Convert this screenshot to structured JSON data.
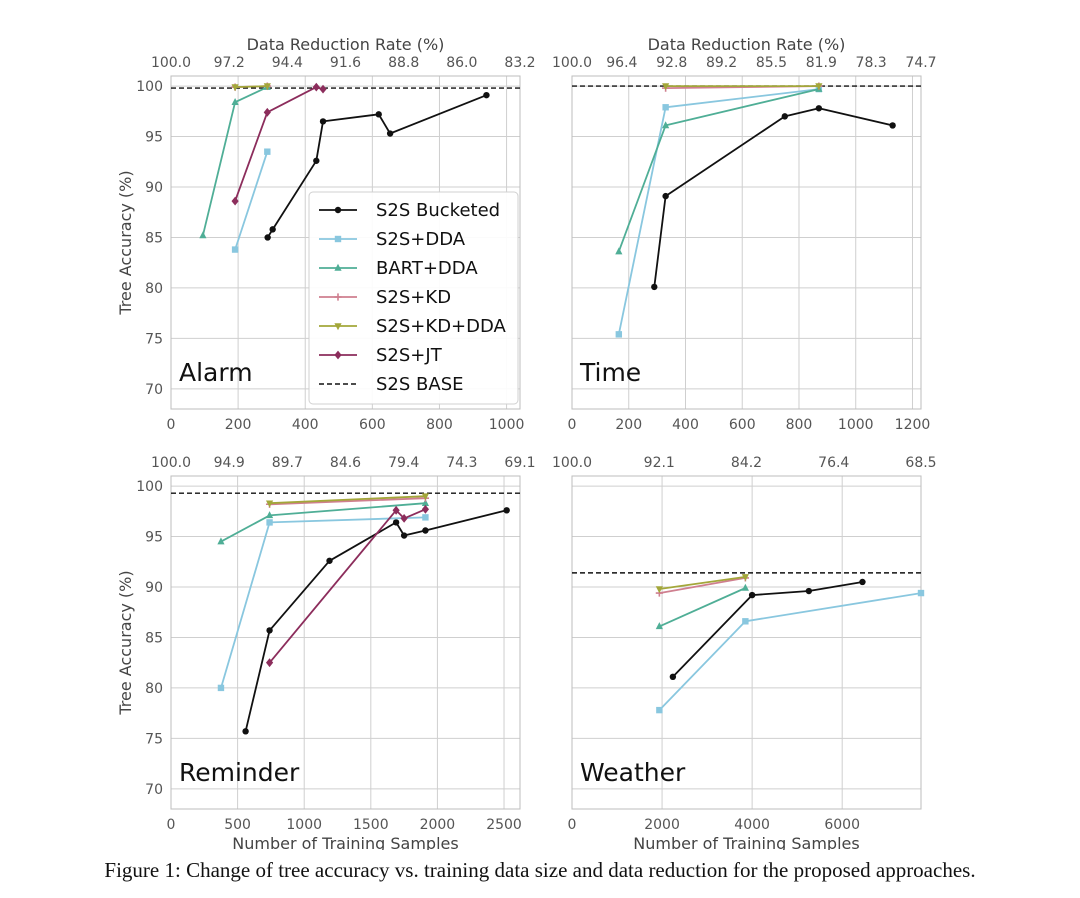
{
  "caption": "Figure 1: Change of tree accuracy vs. training data size and data reduction for the proposed approaches.",
  "colors": {
    "S2S Bucketed": "#111111",
    "S2S+DDA": "#89c7df",
    "BART+DDA": "#4fae96",
    "S2S+KD": "#cf7f8f",
    "S2S+KD+DDA": "#a3a73a",
    "S2S+JT": "#8c2d5c",
    "S2S BASE": "#111111"
  },
  "markers": {
    "S2S Bucketed": "circle",
    "S2S+DDA": "square",
    "BART+DDA": "triangle-up",
    "S2S+KD": "plus",
    "S2S+KD+DDA": "triangle-down",
    "S2S+JT": "diamond",
    "S2S BASE": "dashed-line"
  },
  "legend": {
    "placement": "inside Alarm panel, lower-right",
    "entries": [
      "S2S Bucketed",
      "S2S+DDA",
      "BART+DDA",
      "S2S+KD",
      "S2S+KD+DDA",
      "S2S+JT",
      "S2S BASE"
    ]
  },
  "chart_data": [
    {
      "type": "line",
      "title": "Alarm",
      "xlabel": "",
      "ylabel": "Tree Accuracy (%)",
      "top_xlabel": "Data Reduction Rate (%)",
      "xlim": [
        0,
        1040
      ],
      "ylim": [
        68,
        101
      ],
      "x_ticks": [
        0,
        200,
        400,
        600,
        800,
        1000
      ],
      "y_ticks": [
        70,
        75,
        80,
        85,
        90,
        95,
        100
      ],
      "top_ticks": [
        "100.0",
        "97.2",
        "94.4",
        "91.6",
        "88.8",
        "86.0",
        "83.2"
      ],
      "grid": true,
      "baseline": 99.8,
      "series": [
        {
          "name": "S2S Bucketed",
          "x": [
            288,
            303,
            433,
            453,
            619,
            653,
            940
          ],
          "y": [
            85.0,
            85.8,
            92.6,
            96.5,
            97.2,
            95.3,
            99.1
          ]
        },
        {
          "name": "S2S+DDA",
          "x": [
            191,
            287
          ],
          "y": [
            83.8,
            93.5
          ]
        },
        {
          "name": "BART+DDA",
          "x": [
            95,
            191,
            287
          ],
          "y": [
            85.2,
            98.4,
            99.9
          ]
        },
        {
          "name": "S2S+KD",
          "x": [
            191,
            287
          ],
          "y": [
            99.9,
            100.0
          ]
        },
        {
          "name": "S2S+KD+DDA",
          "x": [
            191,
            287
          ],
          "y": [
            99.9,
            100.0
          ]
        },
        {
          "name": "S2S+JT",
          "x": [
            191,
            287,
            433,
            453
          ],
          "y": [
            88.6,
            97.4,
            99.9,
            99.7
          ]
        }
      ]
    },
    {
      "type": "line",
      "title": "Time",
      "xlabel": "",
      "ylabel": "",
      "top_xlabel": "Data Reduction Rate (%)",
      "xlim": [
        0,
        1230
      ],
      "ylim": [
        68,
        101
      ],
      "x_ticks": [
        0,
        200,
        400,
        600,
        800,
        1000,
        1200
      ],
      "y_ticks": [
        70,
        75,
        80,
        85,
        90,
        95,
        100
      ],
      "top_ticks": [
        "100.0",
        "96.4",
        "92.8",
        "89.2",
        "85.5",
        "81.9",
        "78.3",
        "74.7"
      ],
      "grid": true,
      "baseline": 100.0,
      "series": [
        {
          "name": "S2S Bucketed",
          "x": [
            290,
            330,
            750,
            870,
            1130
          ],
          "y": [
            80.1,
            89.1,
            97.0,
            97.8,
            96.1
          ]
        },
        {
          "name": "S2S+DDA",
          "x": [
            165,
            330,
            870
          ],
          "y": [
            75.4,
            97.9,
            99.7
          ]
        },
        {
          "name": "BART+DDA",
          "x": [
            165,
            330,
            870
          ],
          "y": [
            83.6,
            96.1,
            99.7
          ]
        },
        {
          "name": "S2S+KD",
          "x": [
            330,
            870
          ],
          "y": [
            99.8,
            100.0
          ]
        },
        {
          "name": "S2S+KD+DDA",
          "x": [
            330,
            870
          ],
          "y": [
            100.0,
            100.0
          ]
        }
      ]
    },
    {
      "type": "line",
      "title": "Reminder",
      "xlabel": "Number of Training Samples",
      "ylabel": "Tree Accuracy (%)",
      "top_xlabel": "",
      "xlim": [
        0,
        2620
      ],
      "ylim": [
        68,
        101
      ],
      "x_ticks": [
        0,
        500,
        1000,
        1500,
        2000,
        2500
      ],
      "y_ticks": [
        70,
        75,
        80,
        85,
        90,
        95,
        100
      ],
      "top_ticks": [
        "100.0",
        "94.9",
        "89.7",
        "84.6",
        "79.4",
        "74.3",
        "69.1"
      ],
      "grid": true,
      "baseline": 99.3,
      "series": [
        {
          "name": "S2S Bucketed",
          "x": [
            560,
            740,
            1190,
            1690,
            1750,
            1910,
            2520
          ],
          "y": [
            75.7,
            85.7,
            92.6,
            96.4,
            95.1,
            95.6,
            97.6
          ]
        },
        {
          "name": "S2S+DDA",
          "x": [
            375,
            740,
            1910
          ],
          "y": [
            80.0,
            96.4,
            96.9
          ]
        },
        {
          "name": "BART+DDA",
          "x": [
            375,
            740,
            1910
          ],
          "y": [
            94.5,
            97.1,
            98.3
          ]
        },
        {
          "name": "S2S+KD",
          "x": [
            740,
            1910
          ],
          "y": [
            98.2,
            98.8
          ]
        },
        {
          "name": "S2S+KD+DDA",
          "x": [
            740,
            1910
          ],
          "y": [
            98.3,
            99.0
          ]
        },
        {
          "name": "S2S+JT",
          "x": [
            740,
            1690,
            1750,
            1910
          ],
          "y": [
            82.5,
            97.6,
            96.8,
            97.7
          ]
        }
      ]
    },
    {
      "type": "line",
      "title": "Weather",
      "xlabel": "Number of Training Samples",
      "ylabel": "",
      "top_xlabel": "",
      "xlim": [
        0,
        7750
      ],
      "ylim": [
        68,
        101
      ],
      "x_ticks": [
        0,
        2000,
        4000,
        6000
      ],
      "y_ticks": [
        70,
        75,
        80,
        85,
        90,
        95,
        100
      ],
      "top_ticks": [
        "100.0",
        "92.1",
        "84.2",
        "76.4",
        "68.5"
      ],
      "grid": true,
      "baseline": 91.4,
      "series": [
        {
          "name": "S2S Bucketed",
          "x": [
            2240,
            4000,
            5260,
            6450
          ],
          "y": [
            81.1,
            89.2,
            89.6,
            90.5
          ]
        },
        {
          "name": "S2S+DDA",
          "x": [
            1940,
            3850,
            7750
          ],
          "y": [
            77.8,
            86.6,
            89.4
          ]
        },
        {
          "name": "BART+DDA",
          "x": [
            1940,
            3850
          ],
          "y": [
            86.1,
            89.9
          ]
        },
        {
          "name": "S2S+KD",
          "x": [
            1940,
            3850
          ],
          "y": [
            89.4,
            90.9
          ]
        },
        {
          "name": "S2S+KD+DDA",
          "x": [
            1940,
            3850
          ],
          "y": [
            89.8,
            91.0
          ]
        }
      ]
    }
  ]
}
